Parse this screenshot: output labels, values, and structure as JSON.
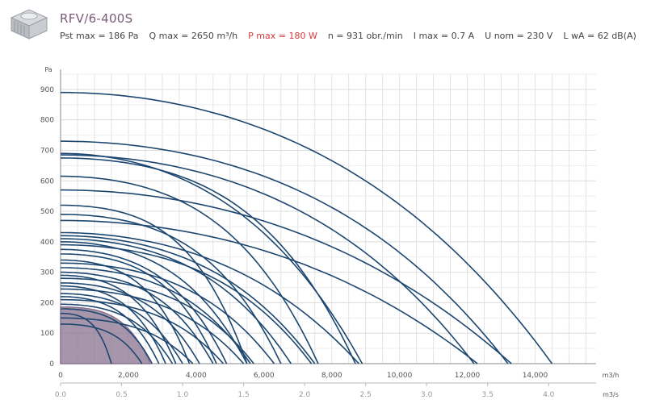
{
  "product": {
    "title": "RFV/6-400S",
    "thumbnail_icon": "roof-fan-unit-icon",
    "specs": [
      {
        "id": "pst-max",
        "text": "Pst max = 186 Pa",
        "color": "#444444"
      },
      {
        "id": "q-max",
        "text": "Q max = 2650 m³/h",
        "color": "#444444"
      },
      {
        "id": "p-max",
        "text": "P max = 180 W",
        "color": "#d63a3a"
      },
      {
        "id": "speed",
        "text": "n = 931 obr./min",
        "color": "#444444"
      },
      {
        "id": "i-max",
        "text": "I max = 0.7 A",
        "color": "#444444"
      },
      {
        "id": "u-nom",
        "text": "U nom = 230 V",
        "color": "#444444"
      },
      {
        "id": "lwa",
        "text": "L wA = 62 dB(A)",
        "color": "#444444"
      }
    ]
  },
  "chart_data": {
    "type": "line",
    "ylabel": "Pa",
    "xlabel": "m3/h",
    "x2label": "m3/s",
    "xlim": [
      0,
      15800
    ],
    "ylim": [
      0,
      950
    ],
    "x_ticks": [
      0,
      2000,
      4000,
      6000,
      8000,
      10000,
      12000,
      14000
    ],
    "x_tick_labels": [
      "0",
      "2,000",
      "4,000",
      "6,000",
      "8,000",
      "10,000",
      "12,000",
      "14,000"
    ],
    "x2_ticks": [
      0,
      0.5,
      1.0,
      1.5,
      2.0,
      2.5,
      3.0,
      3.5,
      4.0
    ],
    "x2_tick_labels": [
      "0.0",
      "0.5",
      "1.0",
      "1.5",
      "2.0",
      "2.5",
      "3.0",
      "3.5",
      "4.0"
    ],
    "y_ticks": [
      0,
      100,
      200,
      300,
      400,
      500,
      600,
      700,
      800,
      900
    ],
    "y_tick_labels": [
      "0",
      "100",
      "200",
      "300",
      "400",
      "500",
      "600",
      "700",
      "800",
      "900"
    ],
    "grid": true,
    "curve_color": "#1d4770",
    "highlight_color": "#8a7290",
    "highlight": {
      "p0": 186,
      "qmax": 2650,
      "curvature": 0.25
    },
    "curves": [
      {
        "p0": 890,
        "qmax": 14500,
        "curvature": 0.75
      },
      {
        "p0": 730,
        "qmax": 13200,
        "curvature": 0.7
      },
      {
        "p0": 685,
        "qmax": 12200,
        "curvature": 0.7
      },
      {
        "p0": 690,
        "qmax": 8900,
        "curvature": 0.7
      },
      {
        "p0": 570,
        "qmax": 13300,
        "curvature": 0.85
      },
      {
        "p0": 470,
        "qmax": 12300,
        "curvature": 0.85
      },
      {
        "p0": 675,
        "qmax": 8700,
        "curvature": 0.45
      },
      {
        "p0": 615,
        "qmax": 7600,
        "curvature": 0.5
      },
      {
        "p0": 520,
        "qmax": 5500,
        "curvature": 0.35
      },
      {
        "p0": 490,
        "qmax": 6500,
        "curvature": 0.45
      },
      {
        "p0": 430,
        "qmax": 8800,
        "curvature": 0.75
      },
      {
        "p0": 420,
        "qmax": 7500,
        "curvature": 0.65
      },
      {
        "p0": 410,
        "qmax": 6800,
        "curvature": 0.6
      },
      {
        "p0": 400,
        "qmax": 5500,
        "curvature": 0.55
      },
      {
        "p0": 390,
        "qmax": 7400,
        "curvature": 0.6
      },
      {
        "p0": 375,
        "qmax": 4900,
        "curvature": 0.5
      },
      {
        "p0": 360,
        "qmax": 4600,
        "curvature": 0.4
      },
      {
        "p0": 340,
        "qmax": 3800,
        "curvature": 0.4
      },
      {
        "p0": 330,
        "qmax": 6300,
        "curvature": 0.6
      },
      {
        "p0": 315,
        "qmax": 5600,
        "curvature": 0.55
      },
      {
        "p0": 300,
        "qmax": 4500,
        "curvature": 0.5
      },
      {
        "p0": 290,
        "qmax": 3400,
        "curvature": 0.45
      },
      {
        "p0": 280,
        "qmax": 5700,
        "curvature": 0.55
      },
      {
        "p0": 265,
        "qmax": 4100,
        "curvature": 0.5
      },
      {
        "p0": 255,
        "qmax": 3100,
        "curvature": 0.45
      },
      {
        "p0": 245,
        "qmax": 5400,
        "curvature": 0.6
      },
      {
        "p0": 230,
        "qmax": 3600,
        "curvature": 0.5
      },
      {
        "p0": 220,
        "qmax": 2900,
        "curvature": 0.45
      },
      {
        "p0": 210,
        "qmax": 4800,
        "curvature": 0.55
      },
      {
        "p0": 195,
        "qmax": 3300,
        "curvature": 0.45
      },
      {
        "p0": 180,
        "qmax": 2700,
        "curvature": 0.4
      },
      {
        "p0": 165,
        "qmax": 1500,
        "curvature": 0.3
      },
      {
        "p0": 150,
        "qmax": 3900,
        "curvature": 0.5
      },
      {
        "p0": 130,
        "qmax": 2400,
        "curvature": 0.4
      }
    ]
  }
}
